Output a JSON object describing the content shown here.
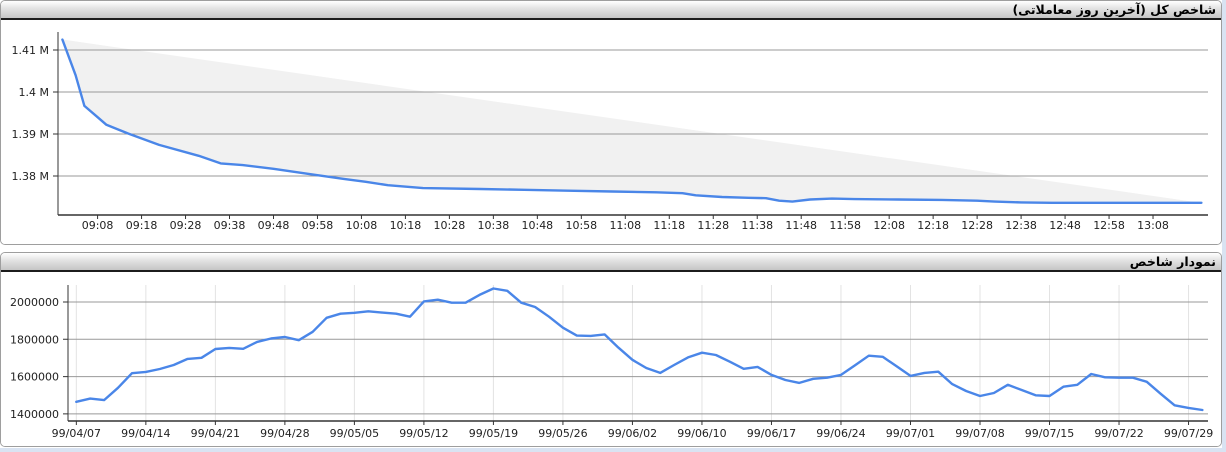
{
  "page": {
    "background": "#d9e3f2",
    "panel_background": "#ffffff"
  },
  "panels": [
    {
      "title": "شاخص کل (آخرین روز معاملاتی)"
    },
    {
      "title": "نمودار شاخص"
    }
  ],
  "colors": {
    "line": "#4a86e8",
    "band": "#f1f1f1",
    "grid": "#999999",
    "grid_vertical": "#e3e3e3",
    "axis": "#333333",
    "label": "#222222",
    "panel_border": "#9e9e9e",
    "header_border": "#1c1c1c"
  },
  "chart_data": [
    {
      "type": "line",
      "title": "شاخص کل (آخرین روز معاملاتی)",
      "xlabel": "",
      "ylabel": "",
      "x_unit": "minutes after 09:00",
      "legend": "none",
      "grid_vertical": false,
      "band_to_chord": true,
      "x_range": [
        -1,
        260.5
      ],
      "y_range": [
        1370700,
        1414300
      ],
      "y_tick_values": [
        1380000,
        1390000,
        1400000,
        1410000
      ],
      "y_tick_labels": [
        "1.38 M",
        "1.39 M",
        "1.4 M",
        "1.41 M"
      ],
      "x_tick_values": [
        8,
        18,
        28,
        38,
        48,
        58,
        68,
        78,
        88,
        98,
        108,
        118,
        128,
        138,
        148,
        158,
        168,
        178,
        188,
        198,
        208,
        218,
        228,
        238,
        248
      ],
      "x_tick_labels": [
        "09:08",
        "09:18",
        "09:28",
        "09:38",
        "09:48",
        "09:58",
        "10:08",
        "10:18",
        "10:28",
        "10:38",
        "10:48",
        "10:58",
        "11:08",
        "11:18",
        "11:28",
        "11:38",
        "11:48",
        "11:58",
        "12:08",
        "12:18",
        "12:28",
        "12:38",
        "12:48",
        "12:58",
        "13:08"
      ],
      "points": [
        [
          0,
          1412500
        ],
        [
          3,
          1404000
        ],
        [
          5,
          1396700
        ],
        [
          8,
          1394000
        ],
        [
          10,
          1392200
        ],
        [
          15,
          1390100
        ],
        [
          22,
          1387400
        ],
        [
          31,
          1384800
        ],
        [
          36,
          1383000
        ],
        [
          41,
          1382600
        ],
        [
          48,
          1381700
        ],
        [
          56,
          1380500
        ],
        [
          64,
          1379300
        ],
        [
          69,
          1378600
        ],
        [
          74,
          1377800
        ],
        [
          82,
          1377100
        ],
        [
          95,
          1376900
        ],
        [
          105,
          1376700
        ],
        [
          115,
          1376500
        ],
        [
          125,
          1376300
        ],
        [
          135,
          1376100
        ],
        [
          141,
          1375900
        ],
        [
          144,
          1375400
        ],
        [
          150,
          1375000
        ],
        [
          156,
          1374800
        ],
        [
          160,
          1374700
        ],
        [
          163,
          1374100
        ],
        [
          166,
          1373900
        ],
        [
          170,
          1374400
        ],
        [
          175,
          1374600
        ],
        [
          180,
          1374500
        ],
        [
          190,
          1374400
        ],
        [
          200,
          1374300
        ],
        [
          208,
          1374100
        ],
        [
          212,
          1373900
        ],
        [
          218,
          1373700
        ],
        [
          225,
          1373600
        ],
        [
          235,
          1373600
        ],
        [
          245,
          1373600
        ],
        [
          252,
          1373600
        ],
        [
          259,
          1373600
        ]
      ]
    },
    {
      "type": "line",
      "title": "نمودار شاخص",
      "xlabel": "",
      "ylabel": "",
      "x_unit": "trading day index",
      "legend": "none",
      "grid_vertical": true,
      "band_to_chord": false,
      "x_range": [
        -0.6,
        81.4
      ],
      "y_range": [
        1362000,
        2091000
      ],
      "y_tick_values": [
        1400000,
        1600000,
        1800000,
        2000000
      ],
      "y_tick_labels": [
        "1400000",
        "1600000",
        "1800000",
        "2000000"
      ],
      "x_tick_values": [
        0,
        5,
        10,
        15,
        20,
        25,
        30,
        35,
        40,
        45,
        50,
        55,
        60,
        65,
        70,
        75,
        80
      ],
      "x_tick_labels": [
        "99/04/07",
        "99/04/14",
        "99/04/21",
        "99/04/28",
        "99/05/05",
        "99/05/12",
        "99/05/19",
        "99/05/26",
        "99/06/02",
        "99/06/10",
        "99/06/17",
        "99/06/24",
        "99/07/01",
        "99/07/08",
        "99/07/15",
        "99/07/22",
        "99/07/29"
      ],
      "points": [
        [
          0,
          1465000
        ],
        [
          1,
          1482000
        ],
        [
          2,
          1474000
        ],
        [
          3,
          1540000
        ],
        [
          4,
          1618000
        ],
        [
          5,
          1625000
        ],
        [
          6,
          1641000
        ],
        [
          7,
          1662000
        ],
        [
          8,
          1695000
        ],
        [
          9,
          1701000
        ],
        [
          10,
          1748000
        ],
        [
          11,
          1754000
        ],
        [
          12,
          1749000
        ],
        [
          13,
          1786000
        ],
        [
          14,
          1804000
        ],
        [
          15,
          1812000
        ],
        [
          16,
          1795000
        ],
        [
          17,
          1840000
        ],
        [
          18,
          1915000
        ],
        [
          19,
          1937000
        ],
        [
          20,
          1942000
        ],
        [
          21,
          1950000
        ],
        [
          22,
          1943000
        ],
        [
          23,
          1937000
        ],
        [
          24,
          1921000
        ],
        [
          25,
          2003000
        ],
        [
          26,
          2012000
        ],
        [
          27,
          1996000
        ],
        [
          28,
          1996000
        ],
        [
          29,
          2038000
        ],
        [
          30,
          2072000
        ],
        [
          31,
          2060000
        ],
        [
          32,
          1996000
        ],
        [
          33,
          1973000
        ],
        [
          34,
          1921000
        ],
        [
          35,
          1862000
        ],
        [
          36,
          1820000
        ],
        [
          37,
          1818000
        ],
        [
          38,
          1826000
        ],
        [
          39,
          1755000
        ],
        [
          40,
          1690000
        ],
        [
          41,
          1646000
        ],
        [
          42,
          1620000
        ],
        [
          43,
          1662000
        ],
        [
          44,
          1703000
        ],
        [
          45,
          1728000
        ],
        [
          46,
          1716000
        ],
        [
          47,
          1680000
        ],
        [
          48,
          1642000
        ],
        [
          49,
          1652000
        ],
        [
          50,
          1609000
        ],
        [
          51,
          1582000
        ],
        [
          52,
          1566000
        ],
        [
          53,
          1588000
        ],
        [
          54,
          1594000
        ],
        [
          55,
          1609000
        ],
        [
          56,
          1660000
        ],
        [
          57,
          1712000
        ],
        [
          58,
          1706000
        ],
        [
          59,
          1655000
        ],
        [
          60,
          1604000
        ],
        [
          61,
          1620000
        ],
        [
          62,
          1626000
        ],
        [
          63,
          1560000
        ],
        [
          64,
          1523000
        ],
        [
          65,
          1496000
        ],
        [
          66,
          1512000
        ],
        [
          67,
          1556000
        ],
        [
          68,
          1528000
        ],
        [
          69,
          1500000
        ],
        [
          70,
          1496000
        ],
        [
          71,
          1546000
        ],
        [
          72,
          1556000
        ],
        [
          73,
          1614000
        ],
        [
          74,
          1596000
        ],
        [
          75,
          1594000
        ],
        [
          76,
          1594000
        ],
        [
          77,
          1572000
        ],
        [
          78,
          1508000
        ],
        [
          79,
          1446000
        ],
        [
          80,
          1432000
        ],
        [
          81,
          1421000
        ]
      ]
    }
  ]
}
